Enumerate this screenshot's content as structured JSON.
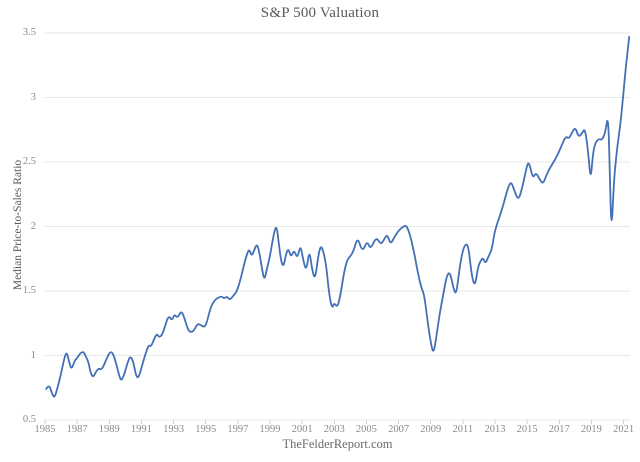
{
  "colors": {
    "line": "#4470b5",
    "grid": "#e7e7e7",
    "axis_tick": "#cfcfcf",
    "tick_text": "#8a8a8a",
    "title_text": "#5a5a5a",
    "background": "#ffffff"
  },
  "chart_data": {
    "type": "line",
    "title": "S&P 500 Valuation",
    "xlabel": "",
    "ylabel": "Median Price-to-Sales Ratio",
    "source": "TheFelderReport.com",
    "legend": "none",
    "grid": "horizontal",
    "xlim": [
      1985,
      2021.4
    ],
    "ylim": [
      0.5,
      3.5
    ],
    "x_ticks": [
      1985,
      1987,
      1989,
      1991,
      1993,
      1995,
      1997,
      1999,
      2001,
      2003,
      2005,
      2007,
      2009,
      2011,
      2013,
      2015,
      2017,
      2019,
      2021
    ],
    "y_ticks": [
      0.5,
      1,
      1.5,
      2,
      2.5,
      3,
      3.5
    ],
    "y_tick_labels": [
      "0.5",
      "1",
      "1.5",
      "2",
      "2.5",
      "3",
      "3.5"
    ],
    "series": [
      {
        "name": "S&P 500 median price-to-sales ratio",
        "color": "#4470b5",
        "points": [
          [
            1985.08,
            0.74
          ],
          [
            1985.25,
            0.78
          ],
          [
            1985.45,
            0.7
          ],
          [
            1985.6,
            0.67
          ],
          [
            1985.8,
            0.76
          ],
          [
            1986.0,
            0.86
          ],
          [
            1986.2,
            0.98
          ],
          [
            1986.35,
            1.03
          ],
          [
            1986.5,
            0.95
          ],
          [
            1986.65,
            0.89
          ],
          [
            1986.85,
            0.96
          ],
          [
            1987.0,
            0.98
          ],
          [
            1987.2,
            1.02
          ],
          [
            1987.4,
            1.03
          ],
          [
            1987.55,
            0.99
          ],
          [
            1987.7,
            0.95
          ],
          [
            1987.85,
            0.86
          ],
          [
            1988.0,
            0.83
          ],
          [
            1988.2,
            0.88
          ],
          [
            1988.35,
            0.9
          ],
          [
            1988.5,
            0.89
          ],
          [
            1988.65,
            0.92
          ],
          [
            1988.85,
            0.98
          ],
          [
            1989.0,
            1.02
          ],
          [
            1989.2,
            1.03
          ],
          [
            1989.45,
            0.93
          ],
          [
            1989.6,
            0.85
          ],
          [
            1989.75,
            0.8
          ],
          [
            1989.95,
            0.86
          ],
          [
            1990.1,
            0.93
          ],
          [
            1990.3,
            1.0
          ],
          [
            1990.5,
            0.95
          ],
          [
            1990.65,
            0.85
          ],
          [
            1990.8,
            0.82
          ],
          [
            1991.0,
            0.9
          ],
          [
            1991.15,
            0.97
          ],
          [
            1991.3,
            1.03
          ],
          [
            1991.45,
            1.08
          ],
          [
            1991.6,
            1.07
          ],
          [
            1991.8,
            1.13
          ],
          [
            1991.95,
            1.17
          ],
          [
            1992.1,
            1.14
          ],
          [
            1992.3,
            1.16
          ],
          [
            1992.5,
            1.24
          ],
          [
            1992.7,
            1.31
          ],
          [
            1992.9,
            1.27
          ],
          [
            1993.05,
            1.32
          ],
          [
            1993.25,
            1.29
          ],
          [
            1993.5,
            1.35
          ],
          [
            1993.7,
            1.28
          ],
          [
            1993.9,
            1.2
          ],
          [
            1994.05,
            1.18
          ],
          [
            1994.25,
            1.19
          ],
          [
            1994.5,
            1.25
          ],
          [
            1994.75,
            1.23
          ],
          [
            1994.95,
            1.22
          ],
          [
            1995.1,
            1.27
          ],
          [
            1995.3,
            1.37
          ],
          [
            1995.55,
            1.43
          ],
          [
            1995.8,
            1.45
          ],
          [
            1996.0,
            1.46
          ],
          [
            1996.15,
            1.44
          ],
          [
            1996.3,
            1.46
          ],
          [
            1996.5,
            1.43
          ],
          [
            1996.7,
            1.46
          ],
          [
            1996.9,
            1.49
          ],
          [
            1997.1,
            1.56
          ],
          [
            1997.3,
            1.66
          ],
          [
            1997.5,
            1.76
          ],
          [
            1997.7,
            1.83
          ],
          [
            1997.85,
            1.77
          ],
          [
            1998.0,
            1.81
          ],
          [
            1998.2,
            1.87
          ],
          [
            1998.35,
            1.79
          ],
          [
            1998.5,
            1.67
          ],
          [
            1998.65,
            1.58
          ],
          [
            1998.8,
            1.67
          ],
          [
            1999.0,
            1.77
          ],
          [
            1999.2,
            1.92
          ],
          [
            1999.4,
            2.02
          ],
          [
            1999.55,
            1.87
          ],
          [
            1999.7,
            1.72
          ],
          [
            1999.85,
            1.69
          ],
          [
            2000.0,
            1.79
          ],
          [
            2000.15,
            1.83
          ],
          [
            2000.3,
            1.76
          ],
          [
            2000.5,
            1.82
          ],
          [
            2000.7,
            1.75
          ],
          [
            2000.9,
            1.86
          ],
          [
            2001.05,
            1.75
          ],
          [
            2001.25,
            1.65
          ],
          [
            2001.45,
            1.82
          ],
          [
            2001.6,
            1.68
          ],
          [
            2001.8,
            1.58
          ],
          [
            2002.0,
            1.77
          ],
          [
            2002.15,
            1.85
          ],
          [
            2002.3,
            1.82
          ],
          [
            2002.5,
            1.7
          ],
          [
            2002.65,
            1.5
          ],
          [
            2002.85,
            1.36
          ],
          [
            2003.0,
            1.41
          ],
          [
            2003.2,
            1.37
          ],
          [
            2003.4,
            1.48
          ],
          [
            2003.6,
            1.64
          ],
          [
            2003.8,
            1.74
          ],
          [
            2004.0,
            1.77
          ],
          [
            2004.2,
            1.81
          ],
          [
            2004.45,
            1.92
          ],
          [
            2004.75,
            1.8
          ],
          [
            2005.05,
            1.89
          ],
          [
            2005.25,
            1.82
          ],
          [
            2005.6,
            1.92
          ],
          [
            2005.9,
            1.86
          ],
          [
            2006.1,
            1.9
          ],
          [
            2006.3,
            1.94
          ],
          [
            2006.5,
            1.86
          ],
          [
            2006.75,
            1.92
          ],
          [
            2007.0,
            1.97
          ],
          [
            2007.3,
            2.0
          ],
          [
            2007.5,
            2.01
          ],
          [
            2007.75,
            1.92
          ],
          [
            2008.0,
            1.78
          ],
          [
            2008.2,
            1.64
          ],
          [
            2008.4,
            1.53
          ],
          [
            2008.6,
            1.47
          ],
          [
            2008.8,
            1.27
          ],
          [
            2009.0,
            1.1
          ],
          [
            2009.17,
            1.01
          ],
          [
            2009.35,
            1.14
          ],
          [
            2009.55,
            1.32
          ],
          [
            2009.8,
            1.49
          ],
          [
            2010.0,
            1.62
          ],
          [
            2010.2,
            1.65
          ],
          [
            2010.45,
            1.5
          ],
          [
            2010.6,
            1.48
          ],
          [
            2010.8,
            1.68
          ],
          [
            2011.0,
            1.82
          ],
          [
            2011.2,
            1.87
          ],
          [
            2011.35,
            1.84
          ],
          [
            2011.55,
            1.62
          ],
          [
            2011.75,
            1.53
          ],
          [
            2011.95,
            1.69
          ],
          [
            2012.1,
            1.73
          ],
          [
            2012.25,
            1.76
          ],
          [
            2012.4,
            1.71
          ],
          [
            2012.6,
            1.77
          ],
          [
            2012.8,
            1.82
          ],
          [
            2012.95,
            1.94
          ],
          [
            2013.1,
            2.01
          ],
          [
            2013.3,
            2.08
          ],
          [
            2013.55,
            2.18
          ],
          [
            2013.8,
            2.3
          ],
          [
            2014.0,
            2.35
          ],
          [
            2014.2,
            2.28
          ],
          [
            2014.45,
            2.2
          ],
          [
            2014.7,
            2.3
          ],
          [
            2014.95,
            2.45
          ],
          [
            2015.1,
            2.51
          ],
          [
            2015.35,
            2.37
          ],
          [
            2015.55,
            2.42
          ],
          [
            2015.8,
            2.36
          ],
          [
            2016.0,
            2.33
          ],
          [
            2016.2,
            2.4
          ],
          [
            2016.45,
            2.46
          ],
          [
            2016.7,
            2.51
          ],
          [
            2016.95,
            2.57
          ],
          [
            2017.15,
            2.63
          ],
          [
            2017.4,
            2.7
          ],
          [
            2017.6,
            2.68
          ],
          [
            2017.8,
            2.73
          ],
          [
            2018.0,
            2.77
          ],
          [
            2018.2,
            2.69
          ],
          [
            2018.45,
            2.73
          ],
          [
            2018.6,
            2.76
          ],
          [
            2018.8,
            2.58
          ],
          [
            2018.95,
            2.35
          ],
          [
            2019.1,
            2.57
          ],
          [
            2019.25,
            2.65
          ],
          [
            2019.45,
            2.68
          ],
          [
            2019.65,
            2.67
          ],
          [
            2019.85,
            2.72
          ],
          [
            2020.05,
            2.88
          ],
          [
            2020.15,
            2.35
          ],
          [
            2020.25,
            1.95
          ],
          [
            2020.4,
            2.35
          ],
          [
            2020.55,
            2.55
          ],
          [
            2020.7,
            2.7
          ],
          [
            2020.85,
            2.85
          ],
          [
            2021.0,
            3.05
          ],
          [
            2021.15,
            3.25
          ],
          [
            2021.35,
            3.47
          ]
        ]
      }
    ]
  }
}
